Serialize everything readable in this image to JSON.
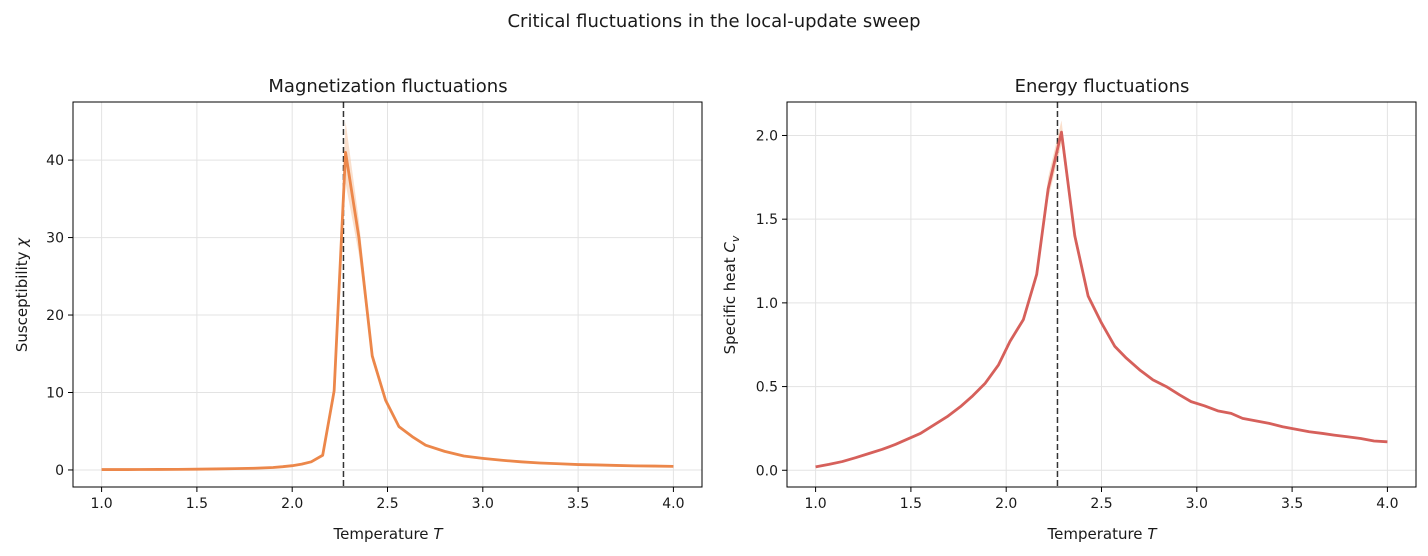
{
  "suptitle": "Critical fluctuations in the local-update sweep",
  "critical_line_x": 2.269,
  "chart_data": [
    {
      "type": "line",
      "title": "Magnetization fluctuations",
      "xlabel": "Temperature T",
      "ylabel": "Susceptibility χ",
      "xlim": [
        0.85,
        4.15
      ],
      "ylim": [
        -2.2,
        47.5
      ],
      "xticks": [
        1.0,
        1.5,
        2.0,
        2.5,
        3.0,
        3.5,
        4.0
      ],
      "xtick_labels": [
        "1.0",
        "1.5",
        "2.0",
        "2.5",
        "3.0",
        "3.5",
        "4.0"
      ],
      "yticks": [
        0,
        10,
        20,
        30,
        40
      ],
      "ytick_labels": [
        "0",
        "10",
        "20",
        "30",
        "40"
      ],
      "grid": true,
      "color": "#ec874a",
      "band_color": "#f6c4a2",
      "series": [
        {
          "x": [
            1.0,
            1.1,
            1.2,
            1.3,
            1.4,
            1.5,
            1.6,
            1.7,
            1.8,
            1.9,
            1.95,
            2.0,
            2.05,
            2.1,
            2.16,
            2.22,
            2.28,
            2.35,
            2.42,
            2.49,
            2.56,
            2.63,
            2.7,
            2.8,
            2.9,
            3.0,
            3.1,
            3.2,
            3.3,
            3.4,
            3.5,
            3.6,
            3.7,
            3.8,
            3.9,
            4.0
          ],
          "values": [
            0.05,
            0.05,
            0.06,
            0.07,
            0.08,
            0.1,
            0.13,
            0.17,
            0.22,
            0.32,
            0.42,
            0.55,
            0.75,
            1.05,
            1.9,
            10.2,
            41.0,
            30.0,
            14.7,
            9.0,
            5.6,
            4.3,
            3.2,
            2.4,
            1.8,
            1.5,
            1.25,
            1.05,
            0.9,
            0.8,
            0.7,
            0.65,
            0.58,
            0.53,
            0.5,
            0.46
          ],
          "upper": [
            0.05,
            0.05,
            0.06,
            0.07,
            0.08,
            0.1,
            0.13,
            0.17,
            0.22,
            0.34,
            0.45,
            0.6,
            0.82,
            1.15,
            2.1,
            11.3,
            45.0,
            32.2,
            15.4,
            9.3,
            5.8,
            4.4,
            3.3,
            2.45,
            1.85,
            1.52,
            1.27,
            1.07,
            0.92,
            0.81,
            0.71,
            0.66,
            0.59,
            0.54,
            0.51,
            0.47
          ],
          "lower": [
            0.05,
            0.05,
            0.06,
            0.07,
            0.08,
            0.1,
            0.13,
            0.17,
            0.22,
            0.3,
            0.39,
            0.5,
            0.68,
            0.95,
            1.7,
            9.1,
            37.0,
            27.8,
            14.0,
            8.7,
            5.4,
            4.2,
            3.1,
            2.35,
            1.75,
            1.48,
            1.23,
            1.03,
            0.88,
            0.79,
            0.69,
            0.64,
            0.57,
            0.52,
            0.49,
            0.45
          ]
        }
      ]
    },
    {
      "type": "line",
      "title": "Energy fluctuations",
      "xlabel": "Temperature T",
      "ylabel": "Specific heat C_v",
      "xlim": [
        0.85,
        4.15
      ],
      "ylim": [
        -0.1,
        2.2
      ],
      "xticks": [
        1.0,
        1.5,
        2.0,
        2.5,
        3.0,
        3.5,
        4.0
      ],
      "xtick_labels": [
        "1.0",
        "1.5",
        "2.0",
        "2.5",
        "3.0",
        "3.5",
        "4.0"
      ],
      "yticks": [
        0.0,
        0.5,
        1.0,
        1.5,
        2.0
      ],
      "ytick_labels": [
        "0.0",
        "0.5",
        "1.0",
        "1.5",
        "2.0"
      ],
      "grid": true,
      "color": "#d6605b",
      "band_color": "#f6c4a2",
      "series": [
        {
          "x": [
            1.0,
            1.07,
            1.14,
            1.21,
            1.28,
            1.35,
            1.42,
            1.49,
            1.55,
            1.62,
            1.69,
            1.76,
            1.82,
            1.89,
            1.96,
            2.02,
            2.09,
            2.16,
            2.22,
            2.29,
            2.36,
            2.43,
            2.5,
            2.57,
            2.63,
            2.7,
            2.77,
            2.84,
            2.91,
            2.97,
            3.04,
            3.11,
            3.18,
            3.24,
            3.31,
            3.38,
            3.45,
            3.52,
            3.59,
            3.66,
            3.72,
            3.79,
            3.86,
            3.93,
            4.0
          ],
          "values": [
            0.02,
            0.035,
            0.052,
            0.075,
            0.1,
            0.125,
            0.155,
            0.19,
            0.22,
            0.27,
            0.32,
            0.38,
            0.44,
            0.52,
            0.63,
            0.77,
            0.9,
            1.17,
            1.68,
            2.02,
            1.4,
            1.04,
            0.88,
            0.74,
            0.67,
            0.6,
            0.54,
            0.5,
            0.45,
            0.41,
            0.385,
            0.355,
            0.34,
            0.31,
            0.295,
            0.28,
            0.26,
            0.245,
            0.23,
            0.22,
            0.21,
            0.2,
            0.19,
            0.175,
            0.17
          ],
          "upper": [
            0.02,
            0.035,
            0.052,
            0.075,
            0.1,
            0.125,
            0.155,
            0.19,
            0.22,
            0.27,
            0.32,
            0.38,
            0.44,
            0.52,
            0.64,
            0.78,
            0.91,
            1.2,
            1.75,
            2.09,
            1.44,
            1.06,
            0.89,
            0.75,
            0.68,
            0.6,
            0.54,
            0.5,
            0.45,
            0.41,
            0.385,
            0.355,
            0.34,
            0.31,
            0.295,
            0.28,
            0.26,
            0.245,
            0.23,
            0.22,
            0.21,
            0.2,
            0.19,
            0.175,
            0.17
          ],
          "lower": [
            0.02,
            0.035,
            0.052,
            0.075,
            0.1,
            0.125,
            0.155,
            0.19,
            0.22,
            0.27,
            0.32,
            0.38,
            0.44,
            0.52,
            0.62,
            0.76,
            0.89,
            1.14,
            1.62,
            1.95,
            1.36,
            1.02,
            0.87,
            0.73,
            0.66,
            0.6,
            0.54,
            0.5,
            0.45,
            0.41,
            0.385,
            0.355,
            0.34,
            0.31,
            0.295,
            0.28,
            0.26,
            0.245,
            0.23,
            0.22,
            0.21,
            0.2,
            0.19,
            0.175,
            0.17
          ]
        }
      ]
    }
  ]
}
